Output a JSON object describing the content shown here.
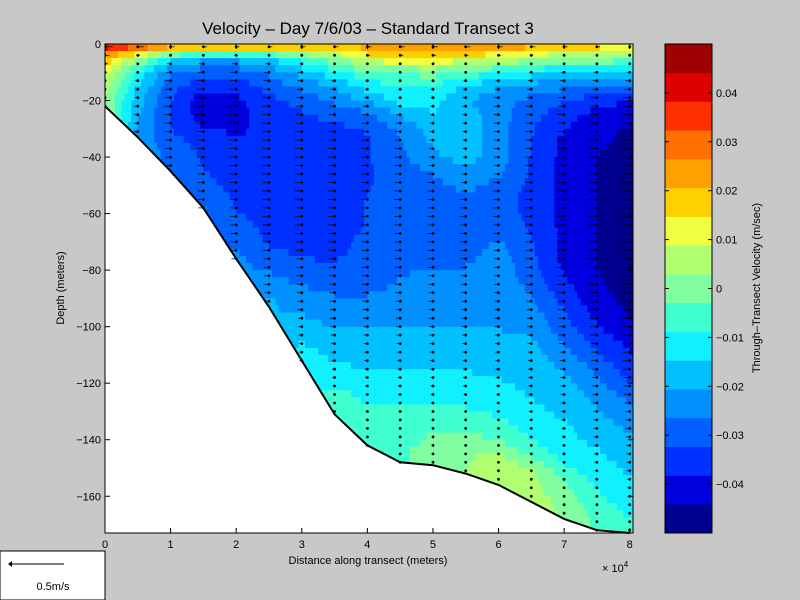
{
  "chart_data": {
    "type": "heatmap",
    "title": "Velocity – Day 7/6/03 – Standard Transect 3",
    "xlabel": "Distance along transect (meters)",
    "ylabel": "Depth (meters)",
    "x_multiplier_label": "× 10",
    "x_multiplier_exponent": "4",
    "xlim": [
      0,
      80500
    ],
    "ylim": [
      -173,
      0
    ],
    "xticks": [
      0,
      1,
      2,
      3,
      4,
      5,
      6,
      7,
      8
    ],
    "yticks": [
      0,
      -20,
      -40,
      -60,
      -80,
      -100,
      -120,
      -140,
      -160
    ],
    "colorbar": {
      "label": "Through–Transect Velocity (m/sec)",
      "range": [
        -0.05,
        0.05
      ],
      "ticks": [
        "0.04",
        "0.03",
        "0.02",
        "0.01",
        "0",
        "−0.01",
        "−0.02",
        "−0.03",
        "−0.04"
      ],
      "tick_values": [
        0.04,
        0.03,
        0.02,
        0.01,
        0,
        -0.01,
        -0.02,
        -0.03,
        -0.04
      ],
      "colors": [
        "#00008f",
        "#0000df",
        "#0030ff",
        "#0060ff",
        "#0090ff",
        "#00c0ff",
        "#10f0ff",
        "#40ffd0",
        "#80ffa0",
        "#b0ff70",
        "#f0ff40",
        "#ffd000",
        "#ffa000",
        "#ff7000",
        "#ff3000",
        "#df0000",
        "#a00000"
      ]
    },
    "bottom_profile": [
      [
        0,
        -22
      ],
      [
        5000,
        -33
      ],
      [
        10000,
        -45
      ],
      [
        15000,
        -58
      ],
      [
        20000,
        -76
      ],
      [
        25000,
        -93
      ],
      [
        30000,
        -112
      ],
      [
        35000,
        -131
      ],
      [
        40000,
        -142
      ],
      [
        45000,
        -148
      ],
      [
        50000,
        -149
      ],
      [
        55000,
        -152
      ],
      [
        60000,
        -156
      ],
      [
        65000,
        -162
      ],
      [
        70000,
        -168
      ],
      [
        75000,
        -172
      ],
      [
        80000,
        -173
      ]
    ],
    "stations_x": [
      0,
      5000,
      10000,
      15000,
      20000,
      25000,
      30000,
      35000,
      40000,
      45000,
      50000,
      55000,
      60000,
      65000,
      70000,
      75000,
      80000
    ],
    "velocity_field": {
      "x": [
        0,
        5000,
        10000,
        15000,
        20000,
        25000,
        30000,
        35000,
        40000,
        45000,
        50000,
        55000,
        60000,
        65000,
        70000,
        75000,
        80000
      ],
      "depths": [
        0,
        -5,
        -10,
        -15,
        -20,
        -25,
        -30,
        -35,
        -40,
        -45,
        -50,
        -55,
        -60,
        -65,
        -70,
        -75,
        -80,
        -85,
        -90,
        -95,
        -100,
        -105,
        -110,
        -115,
        -120,
        -125,
        -130,
        -135,
        -140,
        -145,
        -150,
        -155,
        -160,
        -165,
        -170
      ],
      "values": [
        [
          0.045,
          0.038,
          0.03,
          0.028,
          0.026,
          0.025,
          0.025,
          0.024,
          0.024,
          0.025,
          0.028,
          0.027,
          0.026,
          0.025,
          0.022,
          0.02,
          0.012
        ],
        [
          0.02,
          0.005,
          -0.012,
          -0.018,
          -0.018,
          -0.014,
          -0.006,
          0.002,
          0.012,
          0.014,
          0.014,
          0.012,
          0.01,
          0.006,
          0.002,
          0.002,
          0.0
        ],
        [
          0.01,
          -0.01,
          -0.025,
          -0.03,
          -0.03,
          -0.025,
          -0.018,
          -0.01,
          -0.005,
          -0.002,
          0.0,
          -0.005,
          -0.008,
          -0.012,
          -0.015,
          -0.015,
          -0.015
        ],
        [
          0.005,
          -0.015,
          -0.03,
          -0.037,
          -0.036,
          -0.03,
          -0.025,
          -0.02,
          -0.012,
          -0.008,
          -0.01,
          -0.015,
          -0.02,
          -0.023,
          -0.025,
          -0.026,
          -0.027
        ],
        [
          0.003,
          -0.018,
          -0.032,
          -0.042,
          -0.04,
          -0.034,
          -0.03,
          -0.025,
          -0.02,
          -0.012,
          -0.013,
          -0.02,
          -0.025,
          -0.028,
          -0.032,
          -0.036,
          -0.038
        ],
        [
          null,
          -0.02,
          -0.033,
          -0.042,
          -0.04,
          -0.036,
          -0.033,
          -0.03,
          -0.028,
          -0.02,
          -0.015,
          -0.018,
          -0.024,
          -0.03,
          -0.036,
          -0.04,
          -0.042
        ],
        [
          null,
          -0.022,
          -0.032,
          -0.038,
          -0.039,
          -0.037,
          -0.035,
          -0.034,
          -0.032,
          -0.025,
          -0.018,
          -0.017,
          -0.024,
          -0.032,
          -0.038,
          -0.042,
          -0.045
        ],
        [
          null,
          null,
          -0.03,
          -0.035,
          -0.038,
          -0.037,
          -0.036,
          -0.035,
          -0.033,
          -0.027,
          -0.02,
          -0.017,
          -0.024,
          -0.032,
          -0.04,
          -0.043,
          -0.046
        ],
        [
          null,
          null,
          -0.028,
          -0.033,
          -0.037,
          -0.037,
          -0.036,
          -0.035,
          -0.033,
          -0.028,
          -0.022,
          -0.018,
          -0.024,
          -0.033,
          -0.04,
          -0.044,
          -0.047
        ],
        [
          null,
          null,
          null,
          -0.032,
          -0.036,
          -0.037,
          -0.036,
          -0.035,
          -0.033,
          -0.029,
          -0.026,
          -0.022,
          -0.025,
          -0.033,
          -0.04,
          -0.044,
          -0.048
        ],
        [
          null,
          null,
          null,
          -0.03,
          -0.035,
          -0.036,
          -0.036,
          -0.035,
          -0.033,
          -0.03,
          -0.028,
          -0.025,
          -0.028,
          -0.034,
          -0.04,
          -0.044,
          -0.048
        ],
        [
          null,
          null,
          null,
          -0.028,
          -0.033,
          -0.035,
          -0.036,
          -0.035,
          -0.032,
          -0.03,
          -0.029,
          -0.028,
          -0.03,
          -0.034,
          -0.04,
          -0.044,
          -0.048
        ],
        [
          null,
          null,
          null,
          -0.025,
          -0.032,
          -0.035,
          -0.036,
          -0.035,
          -0.032,
          -0.03,
          -0.029,
          -0.029,
          -0.03,
          -0.034,
          -0.04,
          -0.044,
          -0.048
        ],
        [
          null,
          null,
          null,
          null,
          -0.03,
          -0.034,
          -0.036,
          -0.035,
          -0.032,
          -0.03,
          -0.029,
          -0.029,
          -0.028,
          -0.033,
          -0.04,
          -0.044,
          -0.048
        ],
        [
          null,
          null,
          null,
          null,
          -0.028,
          -0.033,
          -0.035,
          -0.034,
          -0.031,
          -0.029,
          -0.029,
          -0.029,
          -0.026,
          -0.032,
          -0.04,
          -0.044,
          -0.048
        ],
        [
          null,
          null,
          null,
          null,
          -0.025,
          -0.03,
          -0.033,
          -0.033,
          -0.031,
          -0.028,
          -0.028,
          -0.028,
          -0.024,
          -0.031,
          -0.04,
          -0.044,
          -0.048
        ],
        [
          null,
          null,
          null,
          null,
          null,
          -0.027,
          -0.03,
          -0.031,
          -0.03,
          -0.027,
          -0.026,
          -0.026,
          -0.023,
          -0.03,
          -0.039,
          -0.044,
          -0.048
        ],
        [
          null,
          null,
          null,
          null,
          null,
          -0.024,
          -0.027,
          -0.028,
          -0.028,
          -0.026,
          -0.025,
          -0.025,
          -0.023,
          -0.028,
          -0.037,
          -0.043,
          -0.047
        ],
        [
          null,
          null,
          null,
          null,
          null,
          -0.02,
          -0.024,
          -0.026,
          -0.026,
          -0.025,
          -0.024,
          -0.024,
          -0.022,
          -0.026,
          -0.035,
          -0.042,
          -0.046
        ],
        [
          null,
          null,
          null,
          null,
          null,
          null,
          -0.021,
          -0.024,
          -0.024,
          -0.023,
          -0.023,
          -0.023,
          -0.022,
          -0.024,
          -0.032,
          -0.04,
          -0.045
        ],
        [
          null,
          null,
          null,
          null,
          null,
          null,
          -0.018,
          -0.021,
          -0.021,
          -0.021,
          -0.021,
          -0.021,
          -0.021,
          -0.022,
          -0.03,
          -0.038,
          -0.043
        ],
        [
          null,
          null,
          null,
          null,
          null,
          null,
          -0.015,
          -0.019,
          -0.019,
          -0.019,
          -0.019,
          -0.019,
          -0.019,
          -0.02,
          -0.027,
          -0.035,
          -0.04
        ],
        [
          null,
          null,
          null,
          null,
          null,
          null,
          -0.012,
          -0.016,
          -0.017,
          -0.017,
          -0.017,
          -0.017,
          -0.017,
          -0.018,
          -0.024,
          -0.032,
          -0.038
        ],
        [
          null,
          null,
          null,
          null,
          null,
          null,
          null,
          -0.013,
          -0.015,
          -0.015,
          -0.015,
          -0.015,
          -0.016,
          -0.017,
          -0.021,
          -0.028,
          -0.035
        ],
        [
          null,
          null,
          null,
          null,
          null,
          null,
          null,
          -0.01,
          -0.012,
          -0.013,
          -0.013,
          -0.013,
          -0.014,
          -0.016,
          -0.019,
          -0.025,
          -0.032
        ],
        [
          null,
          null,
          null,
          null,
          null,
          null,
          null,
          -0.006,
          -0.01,
          -0.011,
          -0.011,
          -0.011,
          -0.012,
          -0.015,
          -0.017,
          -0.022,
          -0.028
        ],
        [
          null,
          null,
          null,
          null,
          null,
          null,
          null,
          -0.003,
          -0.008,
          -0.008,
          -0.007,
          -0.008,
          -0.01,
          -0.013,
          -0.016,
          -0.02,
          -0.025
        ],
        [
          null,
          null,
          null,
          null,
          null,
          null,
          null,
          null,
          -0.006,
          -0.006,
          -0.004,
          -0.004,
          -0.007,
          -0.011,
          -0.014,
          -0.018,
          -0.022
        ],
        [
          null,
          null,
          null,
          null,
          null,
          null,
          null,
          null,
          -0.005,
          -0.005,
          -0.002,
          0.0,
          -0.004,
          -0.009,
          -0.013,
          -0.016,
          -0.02
        ],
        [
          null,
          null,
          null,
          null,
          null,
          null,
          null,
          null,
          null,
          -0.004,
          0.0,
          0.002,
          0.004,
          -0.005,
          -0.011,
          -0.014,
          -0.018
        ],
        [
          null,
          null,
          null,
          null,
          null,
          null,
          null,
          null,
          null,
          -0.004,
          0.0,
          0.003,
          0.005,
          0.004,
          -0.008,
          -0.012,
          -0.016
        ],
        [
          null,
          null,
          null,
          null,
          null,
          null,
          null,
          null,
          null,
          null,
          null,
          0.003,
          0.006,
          0.005,
          -0.003,
          -0.01,
          -0.014
        ],
        [
          null,
          null,
          null,
          null,
          null,
          null,
          null,
          null,
          null,
          null,
          null,
          null,
          0.006,
          0.006,
          0.0,
          -0.008,
          -0.012
        ],
        [
          null,
          null,
          null,
          null,
          null,
          null,
          null,
          null,
          null,
          null,
          null,
          null,
          null,
          0.006,
          0.002,
          -0.006,
          -0.01
        ],
        [
          null,
          null,
          null,
          null,
          null,
          null,
          null,
          null,
          null,
          null,
          null,
          null,
          null,
          null,
          0.002,
          -0.004,
          -0.008
        ]
      ]
    }
  },
  "legend_box": {
    "label": "0.5m/s",
    "scale_value": 0.5
  }
}
